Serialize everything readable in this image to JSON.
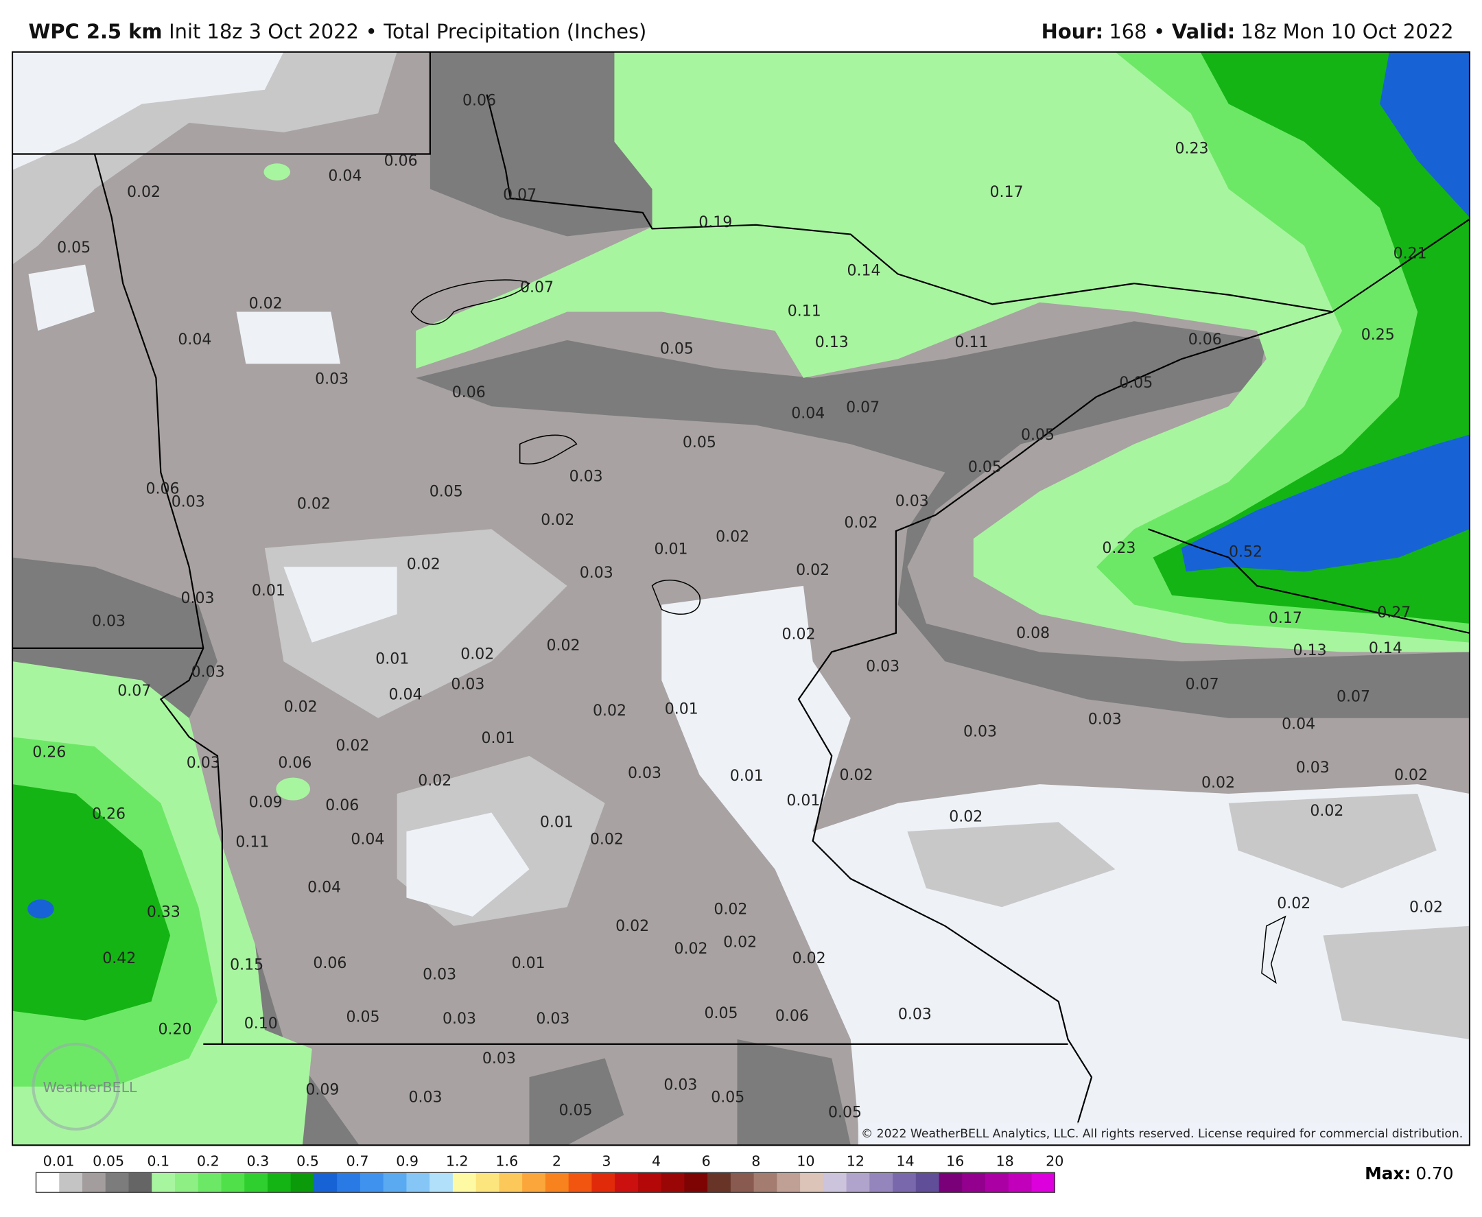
{
  "header": {
    "model": "WPC 2.5 km",
    "init": "Init 18z 3 Oct 2022",
    "separator": "•",
    "product": "Total Precipitation (Inches)",
    "hour_label": "Hour:",
    "hour": "168",
    "valid_label": "Valid:",
    "valid": "18z Mon 10 Oct 2022"
  },
  "map_labels": [
    "0.06",
    "0.06",
    "0.04",
    "0.02",
    "0.07",
    "0.05",
    "0.19",
    "0.23",
    "0.17",
    "0.21",
    "0.14",
    "0.07",
    "0.02",
    "0.11",
    "0.13",
    "0.11",
    "0.06",
    "0.25",
    "0.04",
    "0.05",
    "0.03",
    "0.06",
    "0.05",
    "0.04",
    "0.07",
    "0.05",
    "0.05",
    "0.05",
    "0.03",
    "0.06",
    "0.03",
    "0.02",
    "0.05",
    "0.03",
    "0.02",
    "0.01",
    "0.02",
    "0.02",
    "0.23",
    "0.52",
    "0.02",
    "0.03",
    "0.02",
    "0.03",
    "0.01",
    "0.03",
    "0.17",
    "0.27",
    "0.02",
    "0.08",
    "0.13",
    "0.14",
    "0.01",
    "0.02",
    "0.02",
    "0.03",
    "0.07",
    "0.03",
    "0.04",
    "0.03",
    "0.07",
    "0.07",
    "0.02",
    "0.02",
    "0.01",
    "0.04",
    "0.03",
    "0.03",
    "0.26",
    "0.01",
    "0.02",
    "0.03",
    "0.06",
    "0.03",
    "0.02",
    "0.03",
    "0.01",
    "0.02",
    "0.02",
    "0.02",
    "0.09",
    "0.06",
    "0.01",
    "0.02",
    "0.26",
    "0.02",
    "0.01",
    "0.02",
    "0.11",
    "0.04",
    "0.04",
    "0.02",
    "0.02",
    "0.33",
    "0.02",
    "0.02",
    "0.02",
    "0.02",
    "0.42",
    "0.15",
    "0.06",
    "0.03",
    "0.01",
    "0.02",
    "0.20",
    "0.10",
    "0.05",
    "0.03",
    "0.03",
    "0.05",
    "0.06",
    "0.03",
    "0.03",
    "0.09",
    "0.03",
    "0.03",
    "0.05",
    "0.05",
    "0.05"
  ],
  "watermark": "WeatherBELL",
  "copyright": "© 2022 WeatherBELL Analytics, LLC. All rights reserved. License required for commercial distribution.",
  "legend": {
    "labels": [
      "0.01",
      "0.05",
      "0.1",
      "0.2",
      "0.3",
      "0.5",
      "0.7",
      "0.9",
      "1.2",
      "1.6",
      "2",
      "3",
      "4",
      "6",
      "8",
      "10",
      "12",
      "14",
      "16",
      "18",
      "20"
    ],
    "colors": [
      "#ffffff",
      "#c4c4c4",
      "#a39d9d",
      "#7c7c7c",
      "#656565",
      "#a8f5a0",
      "#8eef84",
      "#6de866",
      "#4fe04a",
      "#2fcf2f",
      "#14b414",
      "#0a9a0a",
      "#1763d6",
      "#2a7ae6",
      "#3f93ee",
      "#5aaaf2",
      "#86c6f6",
      "#b0e0fa",
      "#fefaa4",
      "#fde57e",
      "#fcc85a",
      "#fba63a",
      "#f7821e",
      "#f25510",
      "#e02a0a",
      "#cc1010",
      "#b40808",
      "#9a0606",
      "#7e0404",
      "#683428",
      "#885a50",
      "#a47c70",
      "#c0a094",
      "#dcc4b8",
      "#ccc4dc",
      "#b0a4cc",
      "#9486bc",
      "#7a68ac",
      "#604e98",
      "#7a007a",
      "#94008e",
      "#aa00a4",
      "#c200bc",
      "#dc00dc"
    ]
  },
  "max": {
    "label": "Max:",
    "value": "0.70"
  }
}
